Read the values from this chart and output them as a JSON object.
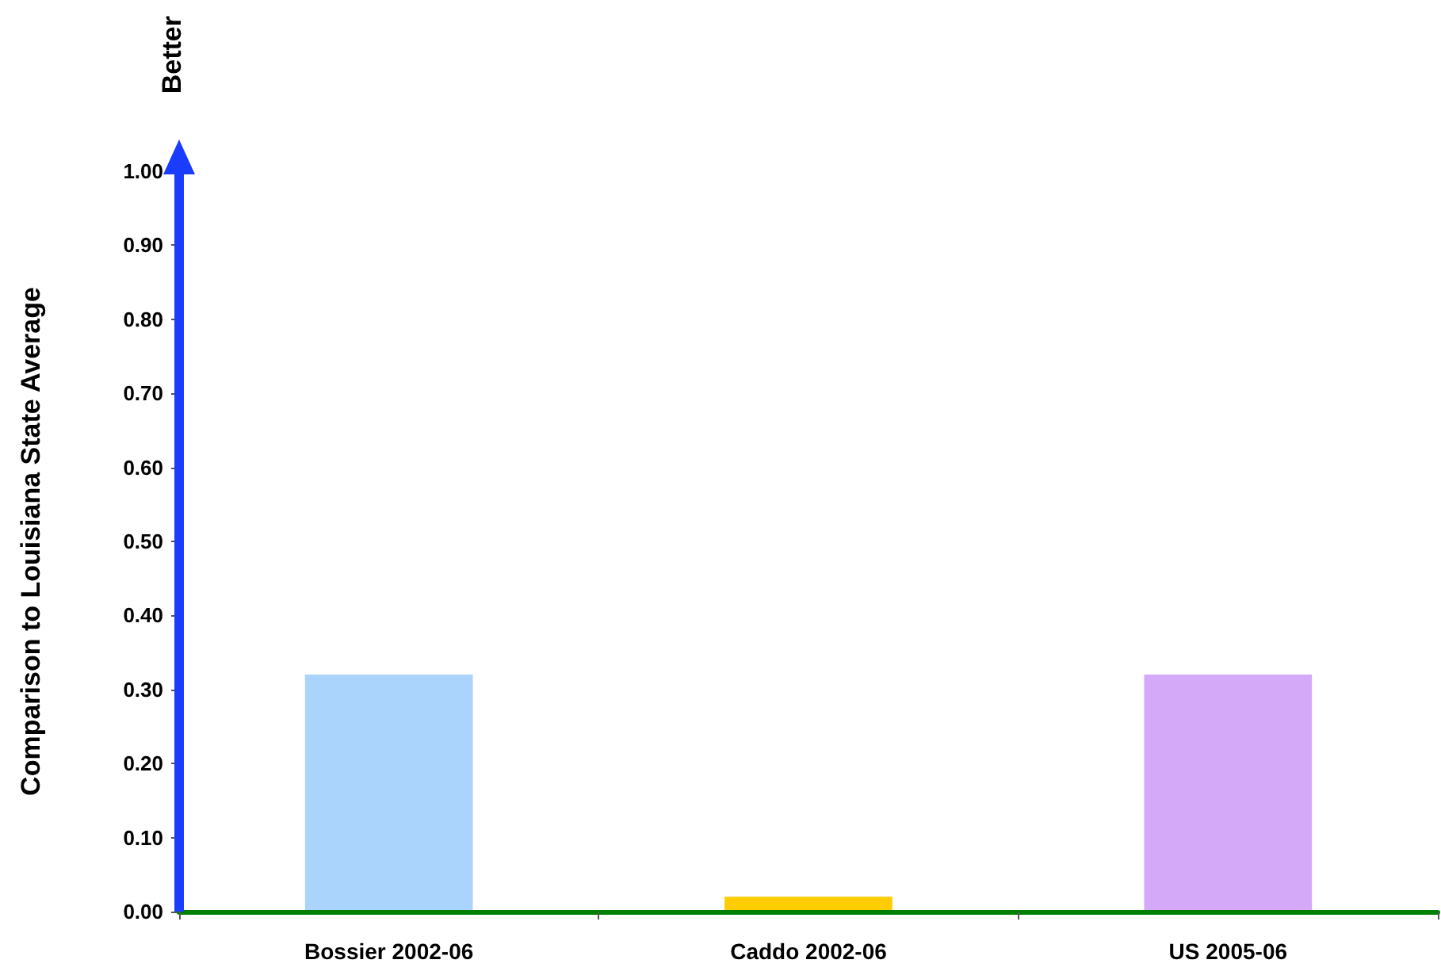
{
  "chart_data": {
    "type": "bar",
    "ylabel": "Comparison to Louisiana State Average",
    "annotations": [
      "Better"
    ],
    "categories": [
      "Bossier 2002-06",
      "Caddo 2002-06",
      "US 2005-06"
    ],
    "values": [
      0.32,
      0.02,
      0.32
    ],
    "colors": [
      "#aad4fc",
      "#ffcc00",
      "#d4aaf8"
    ],
    "ylim": [
      0,
      1
    ],
    "yticks": [
      {
        "value": 0,
        "label": "0.00"
      },
      {
        "value": 0.1,
        "label": "0.10"
      },
      {
        "value": 0.2,
        "label": "0.20"
      },
      {
        "value": 0.3,
        "label": "0.30"
      },
      {
        "value": 0.4,
        "label": "0.40"
      },
      {
        "value": 0.5,
        "label": "0.50"
      },
      {
        "value": 0.6,
        "label": "0.60"
      },
      {
        "value": 0.7,
        "label": "0.70"
      },
      {
        "value": 0.8,
        "label": "0.80"
      },
      {
        "value": 0.9,
        "label": "0.90"
      },
      {
        "value": 1,
        "label": "1.00"
      }
    ],
    "grid": false
  }
}
